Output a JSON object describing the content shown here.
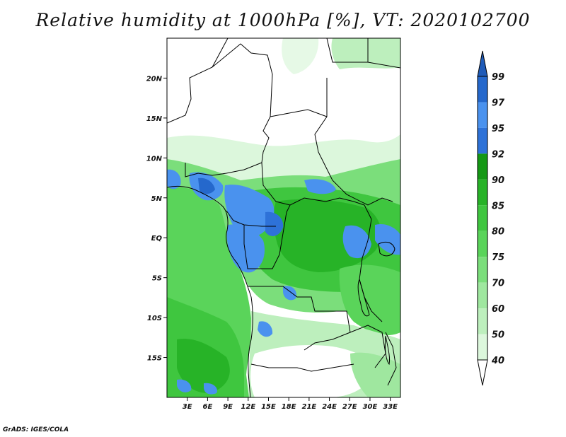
{
  "title": "Relative humidity at 1000hPa [%], VT: 2020102700",
  "credit": "GrADS: IGES/COLA",
  "map": {
    "lon_range": [
      0,
      34.5
    ],
    "lat_range": [
      -20,
      25
    ],
    "lon_ticks": [
      {
        "value": 3,
        "label": "3E"
      },
      {
        "value": 6,
        "label": "6E"
      },
      {
        "value": 9,
        "label": "9E"
      },
      {
        "value": 12,
        "label": "12E"
      },
      {
        "value": 15,
        "label": "15E"
      },
      {
        "value": 18,
        "label": "18E"
      },
      {
        "value": 21,
        "label": "21E"
      },
      {
        "value": 24,
        "label": "24E"
      },
      {
        "value": 27,
        "label": "27E"
      },
      {
        "value": 30,
        "label": "30E"
      },
      {
        "value": 33,
        "label": "33E"
      }
    ],
    "lat_ticks": [
      {
        "value": 20,
        "label": "20N"
      },
      {
        "value": 15,
        "label": "15N"
      },
      {
        "value": 10,
        "label": "10N"
      },
      {
        "value": 5,
        "label": "5N"
      },
      {
        "value": 0,
        "label": "EQ"
      },
      {
        "value": -5,
        "label": "5S"
      },
      {
        "value": -10,
        "label": "10S"
      },
      {
        "value": -15,
        "label": "15S"
      }
    ]
  },
  "colorbar": {
    "levels": [
      "40",
      "50",
      "60",
      "70",
      "75",
      "80",
      "85",
      "90",
      "92",
      "95",
      "97",
      "99"
    ],
    "colors": [
      "#f0fcf0",
      "#dcf7dc",
      "#bdefbd",
      "#9fe79f",
      "#7bde7b",
      "#5ad45a",
      "#3fc63f",
      "#27b327",
      "#159815",
      "#2e72d8",
      "#4a92ee",
      "#2568cc"
    ],
    "below_color": "#ffffff",
    "above_color": "#1f5bb8"
  }
}
